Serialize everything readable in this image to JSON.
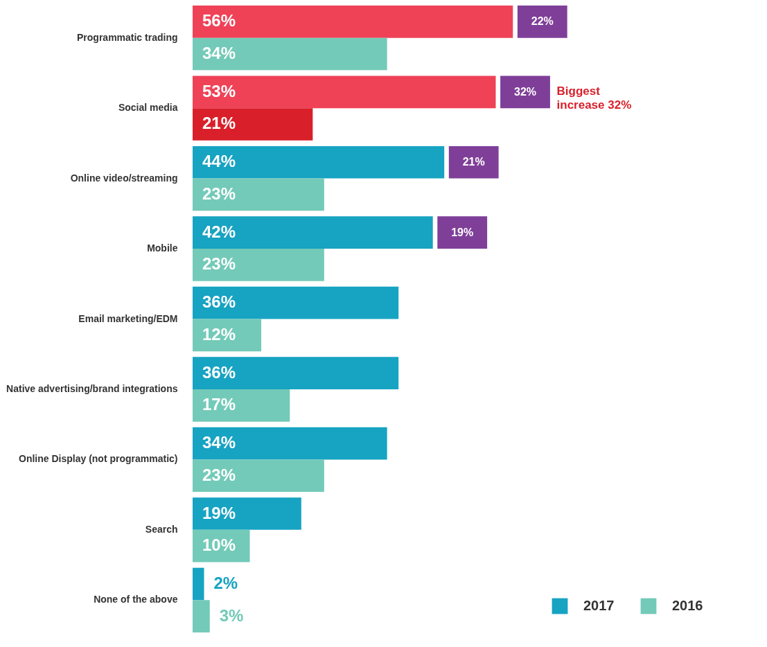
{
  "chart_data": {
    "type": "bar",
    "orientation": "horizontal",
    "categories": [
      "Programmatic trading",
      "Social media",
      "Online video/streaming",
      "Mobile",
      "Email marketing/EDM",
      "Native advertising/brand integrations",
      "Online Display (not programmatic)",
      "Search",
      "None of the above"
    ],
    "series": [
      {
        "name": "2017",
        "color": "#17a3c2",
        "colors": [
          "#ef4257",
          "#ef4257",
          "#17a3c2",
          "#17a3c2",
          "#17a3c2",
          "#17a3c2",
          "#17a3c2",
          "#17a3c2",
          "#17a3c2"
        ],
        "values": [
          56,
          53,
          44,
          42,
          36,
          36,
          34,
          19,
          2
        ],
        "value_labels": [
          "56%",
          "53%",
          "44%",
          "42%",
          "36%",
          "36%",
          "34%",
          "19%",
          "2%"
        ]
      },
      {
        "name": "2016",
        "color": "#73cab8",
        "colors": [
          "#73cab8",
          "#d9202a",
          "#73cab8",
          "#73cab8",
          "#73cab8",
          "#73cab8",
          "#73cab8",
          "#73cab8",
          "#73cab8"
        ],
        "values": [
          34,
          21,
          23,
          23,
          12,
          17,
          23,
          10,
          3
        ],
        "value_labels": [
          "34%",
          "21%",
          "23%",
          "23%",
          "12%",
          "17%",
          "23%",
          "10%",
          "3%"
        ]
      }
    ],
    "annotations": [
      {
        "text": "22%",
        "x": 56,
        "y": "Programmatic trading"
      },
      {
        "text": "32%",
        "x": 53,
        "y": "Social media"
      },
      "Biggest increase 32%",
      {
        "text": "21%",
        "x": 44,
        "y": "Online video/streaming"
      },
      {
        "text": "19%",
        "x": 42,
        "y": "Mobile"
      }
    ],
    "legend": "bottom right"
  }
}
